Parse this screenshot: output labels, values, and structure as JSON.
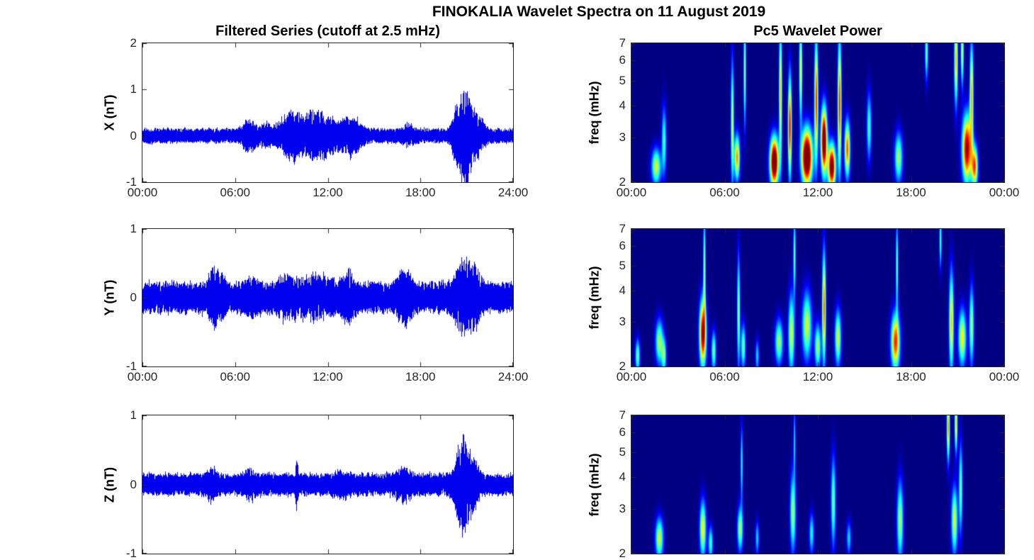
{
  "figure": {
    "title": "FINOKALIA Wavelet Spectra on 11 August 2019",
    "background": "#FFFFFF",
    "axes_color": "#262626",
    "text_color": "#000000"
  },
  "chart_data": [
    {
      "id": "x-filtered-series",
      "type": "line",
      "title": "Filtered Series (cutoff at 2.5 mHz)",
      "ylabel": "X (nT)",
      "ylim": [
        -1,
        2
      ],
      "yticks": [
        -1,
        0,
        1,
        2
      ],
      "xlim_hours": [
        0,
        24
      ],
      "xticks_hours": [
        0,
        6,
        12,
        18,
        24
      ],
      "xtick_labels": [
        "00:00",
        "06:00",
        "12:00",
        "18:00",
        "24:00"
      ],
      "line_color": "#0000EE",
      "grid": false,
      "signal": {
        "seed": 11,
        "base_amp": 0.1,
        "ar": 0.5,
        "gain": 1.1,
        "bursts": [
          {
            "c": 6.9,
            "w": 0.45,
            "a": 0.14
          },
          {
            "c": 8.0,
            "w": 0.4,
            "a": 0.08
          },
          {
            "c": 9.6,
            "w": 0.8,
            "a": 0.22
          },
          {
            "c": 11.4,
            "w": 1.2,
            "a": 0.24
          },
          {
            "c": 13.5,
            "w": 0.7,
            "a": 0.16
          },
          {
            "c": 17.2,
            "w": 0.4,
            "a": 0.06
          },
          {
            "c": 20.3,
            "w": 0.3,
            "a": 0.25
          },
          {
            "c": 20.9,
            "w": 0.4,
            "a": 0.55
          },
          {
            "c": 21.6,
            "w": 0.5,
            "a": 0.22
          }
        ]
      }
    },
    {
      "id": "x-wavelet-power",
      "type": "heatmap",
      "title": "Pc5 Wavelet Power",
      "ylabel": "freq (mHz)",
      "yscale": "log",
      "ylim_mhz": [
        2,
        7
      ],
      "yticks": [
        2,
        3,
        4,
        5,
        6,
        7
      ],
      "xticks_hours": [
        0,
        6,
        12,
        18,
        24
      ],
      "xtick_labels": [
        "00:00",
        "06:00",
        "12:00",
        "18:00",
        "00:00"
      ],
      "colormap": "jet",
      "background_color": "#000080",
      "blobs": [
        {
          "t": 1.6,
          "f": 2.3,
          "dt": 0.3,
          "df": 0.16,
          "a": 0.6
        },
        {
          "t": 2.1,
          "f": 2.9,
          "dt": 0.15,
          "df": 0.3,
          "a": 0.45
        },
        {
          "t": 6.5,
          "f": 3.4,
          "dt": 0.1,
          "df": 0.55,
          "a": 0.6
        },
        {
          "t": 6.8,
          "f": 2.5,
          "dt": 0.18,
          "df": 0.2,
          "a": 0.75
        },
        {
          "t": 7.3,
          "f": 5.5,
          "dt": 0.08,
          "df": 0.5,
          "a": 0.55
        },
        {
          "t": 9.2,
          "f": 2.4,
          "dt": 0.28,
          "df": 0.22,
          "a": 1.2
        },
        {
          "t": 9.6,
          "f": 4.5,
          "dt": 0.1,
          "df": 0.6,
          "a": 0.7
        },
        {
          "t": 10.2,
          "f": 3.3,
          "dt": 0.12,
          "df": 0.45,
          "a": 0.9
        },
        {
          "t": 10.9,
          "f": 5.5,
          "dt": 0.1,
          "df": 0.45,
          "a": 0.65
        },
        {
          "t": 11.3,
          "f": 2.5,
          "dt": 0.35,
          "df": 0.25,
          "a": 1.25
        },
        {
          "t": 11.9,
          "f": 4.2,
          "dt": 0.12,
          "df": 0.55,
          "a": 0.85
        },
        {
          "t": 12.4,
          "f": 2.9,
          "dt": 0.2,
          "df": 0.3,
          "a": 1.15
        },
        {
          "t": 12.9,
          "f": 2.3,
          "dt": 0.25,
          "df": 0.2,
          "a": 1.1
        },
        {
          "t": 13.4,
          "f": 4.0,
          "dt": 0.12,
          "df": 0.6,
          "a": 0.85
        },
        {
          "t": 13.9,
          "f": 2.7,
          "dt": 0.18,
          "df": 0.25,
          "a": 0.8
        },
        {
          "t": 15.3,
          "f": 3.3,
          "dt": 0.15,
          "df": 0.3,
          "a": 0.45
        },
        {
          "t": 17.2,
          "f": 2.5,
          "dt": 0.25,
          "df": 0.22,
          "a": 0.55
        },
        {
          "t": 19.0,
          "f": 6.5,
          "dt": 0.1,
          "df": 0.25,
          "a": 0.5
        },
        {
          "t": 20.9,
          "f": 6.0,
          "dt": 0.12,
          "df": 0.4,
          "a": 0.7
        },
        {
          "t": 21.3,
          "f": 6.5,
          "dt": 0.1,
          "df": 0.3,
          "a": 0.6
        },
        {
          "t": 21.6,
          "f": 2.7,
          "dt": 0.3,
          "df": 0.3,
          "a": 1.0
        },
        {
          "t": 21.9,
          "f": 4.5,
          "dt": 0.12,
          "df": 0.45,
          "a": 0.7
        },
        {
          "t": 22.1,
          "f": 2.3,
          "dt": 0.2,
          "df": 0.18,
          "a": 0.8
        }
      ]
    },
    {
      "id": "y-filtered-series",
      "type": "line",
      "ylabel": "Y (nT)",
      "ylim": [
        -1,
        1
      ],
      "yticks": [
        -1,
        0,
        1
      ],
      "xlim_hours": [
        0,
        24
      ],
      "xticks_hours": [
        0,
        6,
        12,
        18,
        24
      ],
      "xtick_labels": [
        "00:00",
        "06:00",
        "12:00",
        "18:00",
        "24:00"
      ],
      "line_color": "#0000EE",
      "grid": false,
      "signal": {
        "seed": 22,
        "base_amp": 0.14,
        "ar": 0.5,
        "gain": 1.1,
        "bursts": [
          {
            "c": 4.6,
            "w": 0.3,
            "a": 0.16
          },
          {
            "c": 5.2,
            "w": 0.25,
            "a": 0.08
          },
          {
            "c": 7.1,
            "w": 0.5,
            "a": 0.06
          },
          {
            "c": 9.6,
            "w": 0.9,
            "a": 0.07
          },
          {
            "c": 11.5,
            "w": 1.0,
            "a": 0.07
          },
          {
            "c": 13.3,
            "w": 0.4,
            "a": 0.1
          },
          {
            "c": 17.0,
            "w": 0.45,
            "a": 0.14
          },
          {
            "c": 20.7,
            "w": 0.6,
            "a": 0.18
          },
          {
            "c": 21.5,
            "w": 0.4,
            "a": 0.16
          }
        ]
      }
    },
    {
      "id": "y-wavelet-power",
      "type": "heatmap",
      "ylabel": "freq (mHz)",
      "yscale": "log",
      "ylim_mhz": [
        2,
        7
      ],
      "yticks": [
        2,
        3,
        4,
        5,
        6,
        7
      ],
      "xticks_hours": [
        0,
        6,
        12,
        18,
        24
      ],
      "xtick_labels": [
        "00:00",
        "06:00",
        "12:00",
        "18:00",
        "00:00"
      ],
      "colormap": "jet",
      "background_color": "#000080",
      "blobs": [
        {
          "t": 0.4,
          "f": 2.2,
          "dt": 0.15,
          "df": 0.15,
          "a": 0.5
        },
        {
          "t": 1.8,
          "f": 2.5,
          "dt": 0.25,
          "df": 0.2,
          "a": 0.55
        },
        {
          "t": 2.1,
          "f": 2.2,
          "dt": 0.15,
          "df": 0.15,
          "a": 0.45
        },
        {
          "t": 4.6,
          "f": 2.7,
          "dt": 0.22,
          "df": 0.3,
          "a": 1.0
        },
        {
          "t": 4.7,
          "f": 5.0,
          "dt": 0.08,
          "df": 0.45,
          "a": 0.55
        },
        {
          "t": 5.3,
          "f": 2.3,
          "dt": 0.15,
          "df": 0.18,
          "a": 0.5
        },
        {
          "t": 6.9,
          "f": 3.3,
          "dt": 0.1,
          "df": 0.5,
          "a": 0.55
        },
        {
          "t": 7.2,
          "f": 2.4,
          "dt": 0.15,
          "df": 0.2,
          "a": 0.5
        },
        {
          "t": 8.1,
          "f": 2.2,
          "dt": 0.12,
          "df": 0.15,
          "a": 0.35
        },
        {
          "t": 9.5,
          "f": 2.5,
          "dt": 0.25,
          "df": 0.2,
          "a": 0.55
        },
        {
          "t": 10.3,
          "f": 2.7,
          "dt": 0.2,
          "df": 0.35,
          "a": 0.6
        },
        {
          "t": 10.5,
          "f": 5.5,
          "dt": 0.08,
          "df": 0.35,
          "a": 0.5
        },
        {
          "t": 11.3,
          "f": 2.9,
          "dt": 0.3,
          "df": 0.3,
          "a": 0.6
        },
        {
          "t": 12.0,
          "f": 2.4,
          "dt": 0.2,
          "df": 0.2,
          "a": 0.55
        },
        {
          "t": 12.4,
          "f": 3.4,
          "dt": 0.12,
          "df": 0.5,
          "a": 0.8
        },
        {
          "t": 13.3,
          "f": 2.6,
          "dt": 0.2,
          "df": 0.25,
          "a": 0.6
        },
        {
          "t": 17.0,
          "f": 2.5,
          "dt": 0.28,
          "df": 0.25,
          "a": 0.85
        },
        {
          "t": 17.1,
          "f": 5.0,
          "dt": 0.08,
          "df": 0.4,
          "a": 0.5
        },
        {
          "t": 19.9,
          "f": 6.3,
          "dt": 0.08,
          "df": 0.25,
          "a": 0.45
        },
        {
          "t": 20.6,
          "f": 3.0,
          "dt": 0.15,
          "df": 0.45,
          "a": 0.7
        },
        {
          "t": 21.3,
          "f": 2.6,
          "dt": 0.25,
          "df": 0.25,
          "a": 0.65
        },
        {
          "t": 21.9,
          "f": 2.9,
          "dt": 0.15,
          "df": 0.35,
          "a": 0.55
        }
      ]
    },
    {
      "id": "z-filtered-series",
      "type": "line",
      "ylabel": "Z (nT)",
      "ylim": [
        -1,
        1
      ],
      "yticks": [
        -1,
        0,
        1
      ],
      "xlim_hours": [
        0,
        24
      ],
      "xticks_hours": [
        0,
        6,
        12,
        18,
        24
      ],
      "xtick_labels": [],
      "line_color": "#0000EE",
      "grid": false,
      "signal": {
        "seed": 33,
        "base_amp": 0.1,
        "ar": 0.5,
        "gain": 1.1,
        "bursts": [
          {
            "c": 4.5,
            "w": 0.35,
            "a": 0.07
          },
          {
            "c": 7.0,
            "w": 0.4,
            "a": 0.05
          },
          {
            "c": 10.0,
            "w": 0.08,
            "a": 0.18
          },
          {
            "c": 13.0,
            "w": 0.5,
            "a": 0.05
          },
          {
            "c": 16.9,
            "w": 0.5,
            "a": 0.08
          },
          {
            "c": 20.7,
            "w": 0.45,
            "a": 0.33
          },
          {
            "c": 21.4,
            "w": 0.4,
            "a": 0.15
          }
        ]
      }
    },
    {
      "id": "z-wavelet-power",
      "type": "heatmap",
      "ylabel": "freq (mHz)",
      "yscale": "log",
      "ylim_mhz": [
        2,
        7
      ],
      "yticks": [
        2,
        3,
        4,
        5,
        6,
        7
      ],
      "xticks_hours": [
        0,
        6,
        12,
        18,
        24
      ],
      "xtick_labels": [],
      "colormap": "jet",
      "background_color": "#000080",
      "blobs": [
        {
          "t": 1.8,
          "f": 2.3,
          "dt": 0.25,
          "df": 0.18,
          "a": 0.6
        },
        {
          "t": 4.6,
          "f": 2.5,
          "dt": 0.2,
          "df": 0.25,
          "a": 0.65
        },
        {
          "t": 5.1,
          "f": 2.2,
          "dt": 0.15,
          "df": 0.15,
          "a": 0.45
        },
        {
          "t": 7.0,
          "f": 2.5,
          "dt": 0.18,
          "df": 0.2,
          "a": 0.55
        },
        {
          "t": 7.1,
          "f": 4.5,
          "dt": 0.08,
          "df": 0.35,
          "a": 0.4
        },
        {
          "t": 8.1,
          "f": 2.3,
          "dt": 0.12,
          "df": 0.15,
          "a": 0.35
        },
        {
          "t": 10.4,
          "f": 2.9,
          "dt": 0.18,
          "df": 0.35,
          "a": 0.55
        },
        {
          "t": 10.5,
          "f": 5.5,
          "dt": 0.07,
          "df": 0.3,
          "a": 0.35
        },
        {
          "t": 11.6,
          "f": 2.4,
          "dt": 0.15,
          "df": 0.18,
          "a": 0.4
        },
        {
          "t": 13.0,
          "f": 3.2,
          "dt": 0.15,
          "df": 0.4,
          "a": 0.5
        },
        {
          "t": 14.0,
          "f": 2.3,
          "dt": 0.15,
          "df": 0.15,
          "a": 0.35
        },
        {
          "t": 17.3,
          "f": 2.7,
          "dt": 0.2,
          "df": 0.35,
          "a": 0.55
        },
        {
          "t": 20.4,
          "f": 6.3,
          "dt": 0.1,
          "df": 0.3,
          "a": 0.75
        },
        {
          "t": 20.9,
          "f": 6.5,
          "dt": 0.09,
          "df": 0.25,
          "a": 0.7
        },
        {
          "t": 20.8,
          "f": 2.7,
          "dt": 0.2,
          "df": 0.3,
          "a": 0.6
        },
        {
          "t": 21.2,
          "f": 3.6,
          "dt": 0.12,
          "df": 0.4,
          "a": 0.5
        }
      ]
    }
  ]
}
